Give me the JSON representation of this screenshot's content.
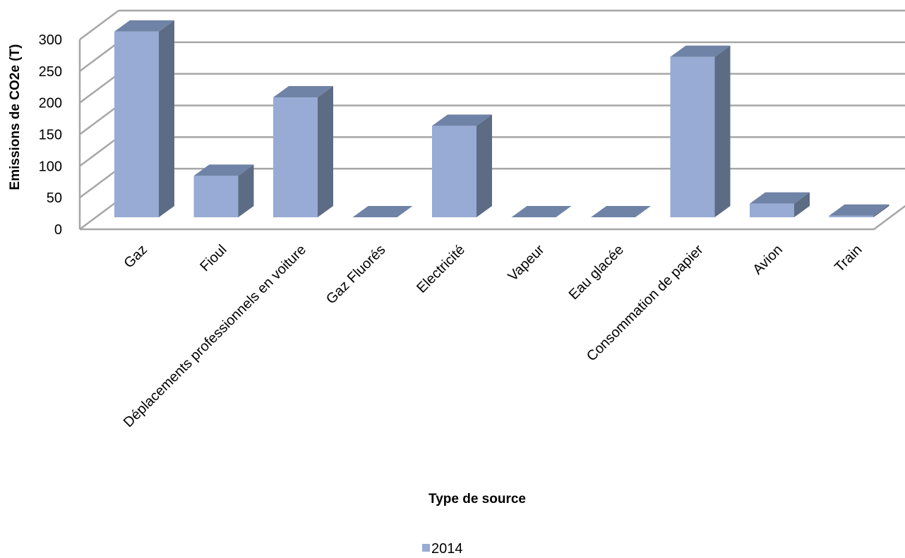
{
  "chart_data": {
    "type": "bar",
    "style": "3d-column",
    "title": "",
    "xlabel": "Type de source",
    "ylabel": "Emissions de CO2e (T)",
    "ylim": [
      0,
      300
    ],
    "yticks": [
      "0",
      "50",
      "100",
      "150",
      "200",
      "250",
      "300"
    ],
    "grid": true,
    "legend_position": "bottom",
    "categories": [
      "Gaz",
      "Fioul",
      "Déplacements professionnels en voiture",
      "Gaz Fluorés",
      "Electricité",
      "Vapeur",
      "Eau glacée",
      "Consommation de papier",
      "Avion",
      "Train"
    ],
    "series": [
      {
        "name": "2014",
        "values": [
          298,
          70,
          194,
          0,
          149,
          0,
          0,
          258,
          26,
          7
        ],
        "color_front": "#97abd4",
        "color_top": "#6f83a6",
        "color_side": "#5d6c85"
      }
    ],
    "gridline_color": "#a6a6a6"
  }
}
